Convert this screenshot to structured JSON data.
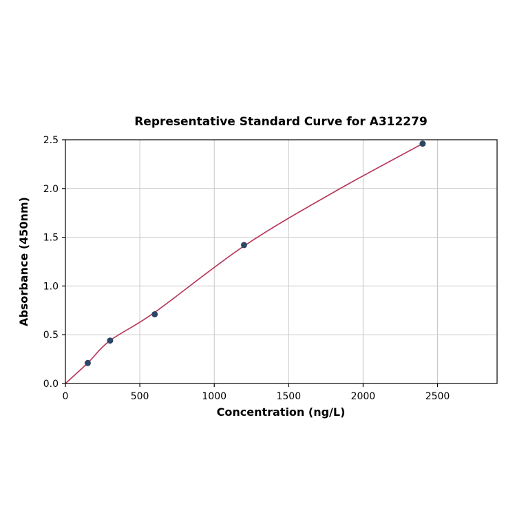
{
  "chart_data": {
    "type": "scatter",
    "title": "Representative Standard Curve for A312279",
    "xlabel": "Concentration (ng/L)",
    "ylabel": "Absorbance (450nm)",
    "xlim": [
      0,
      2900
    ],
    "ylim": [
      0,
      2.5
    ],
    "xticks": [
      0,
      500,
      1000,
      1500,
      2000,
      2500
    ],
    "xtick_labels": [
      "0",
      "500",
      "1000",
      "1500",
      "2000",
      "2500"
    ],
    "yticks": [
      0.0,
      0.5,
      1.0,
      1.5,
      2.0,
      2.5
    ],
    "ytick_labels": [
      "0.0",
      "0.5",
      "1.0",
      "1.5",
      "2.0",
      "2.5"
    ],
    "grid": true,
    "legend": "none",
    "x": [
      150,
      300,
      600,
      1200,
      2400
    ],
    "y": [
      0.21,
      0.44,
      0.71,
      1.42,
      2.46
    ],
    "curve": [
      [
        0,
        0
      ],
      [
        150,
        0.21
      ],
      [
        300,
        0.44
      ],
      [
        600,
        0.73
      ],
      [
        1200,
        1.41
      ],
      [
        1800,
        1.96
      ],
      [
        2400,
        2.46
      ]
    ],
    "colors": {
      "marker": "#2d4665",
      "line": "#b73а5а",
      "line_hex": "#b7395a",
      "grid": "#c8c8c8",
      "axis": "#000000",
      "background": "#ffffff"
    }
  }
}
